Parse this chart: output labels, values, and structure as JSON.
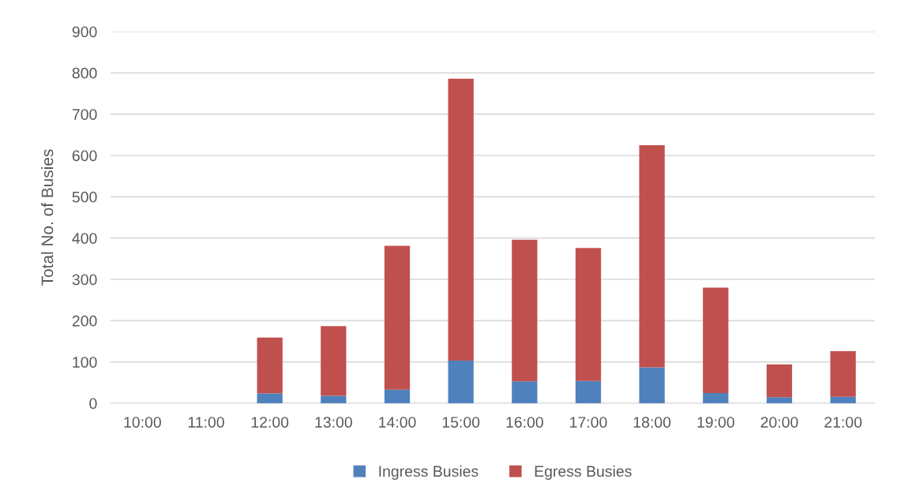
{
  "chart_data": {
    "type": "bar",
    "stacked": true,
    "ylabel": "Total No. of Busies",
    "categories": [
      "10:00",
      "11:00",
      "12:00",
      "13:00",
      "14:00",
      "15:00",
      "16:00",
      "17:00",
      "18:00",
      "19:00",
      "20:00",
      "21:00"
    ],
    "series": [
      {
        "name": "Ingress Busies",
        "color": "#4f81bd",
        "values": [
          0,
          0,
          24,
          18,
          33,
          103,
          53,
          54,
          87,
          25,
          15,
          16
        ]
      },
      {
        "name": "Egress Busies",
        "color": "#c0504d",
        "values": [
          0,
          0,
          135,
          169,
          348,
          683,
          343,
          322,
          538,
          255,
          79,
          110
        ]
      }
    ],
    "ylim": [
      0,
      900
    ],
    "yticks": [
      0,
      100,
      200,
      300,
      400,
      500,
      600,
      700,
      800,
      900
    ],
    "grid": "y",
    "legend": "bottom"
  }
}
